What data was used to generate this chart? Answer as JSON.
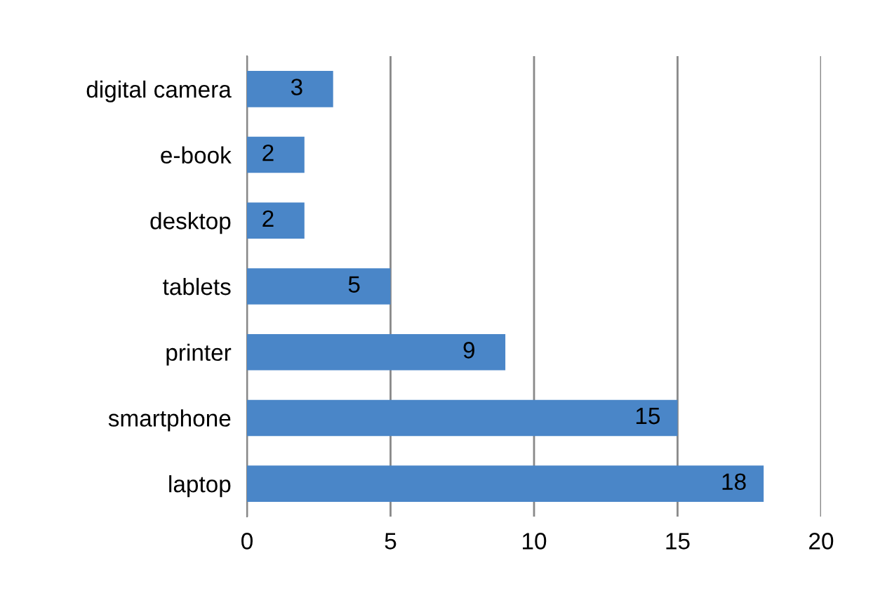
{
  "chart_data": {
    "type": "bar",
    "orientation": "horizontal",
    "categories": [
      "digital camera",
      "e-book",
      "desktop",
      "tablets",
      "printer",
      "smartphone",
      "laptop"
    ],
    "values": [
      3,
      2,
      2,
      5,
      9,
      15,
      18
    ],
    "color": "#4a86c8",
    "xlim": [
      0,
      20
    ],
    "xticks": [
      0,
      5,
      10,
      15,
      20
    ],
    "grid": "x",
    "data_labels": true
  }
}
